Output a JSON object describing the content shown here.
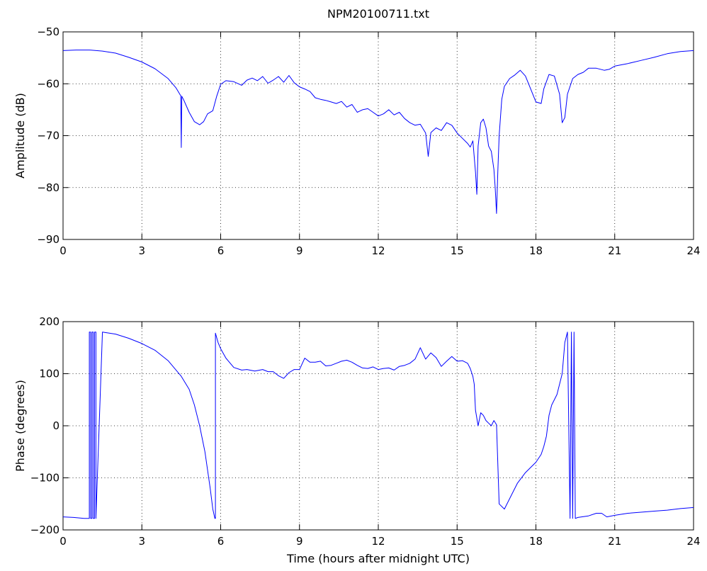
{
  "figure": {
    "title": "NPM20100711.txt"
  },
  "chart_data": [
    {
      "type": "line",
      "title": "NPM20100711.txt",
      "xlabel": "",
      "ylabel": "Amplitude (dB)",
      "xlim": [
        0,
        24
      ],
      "ylim": [
        -90,
        -50
      ],
      "xticks": [
        "0",
        "3",
        "6",
        "9",
        "12",
        "15",
        "18",
        "21",
        "24"
      ],
      "yticks": [
        "-90",
        "-80",
        "-70",
        "-60",
        "-50"
      ],
      "grid": true,
      "color": "#0000ff",
      "series": [
        {
          "x": [
            0,
            0.5,
            1,
            1.5,
            2,
            2.5,
            3,
            3.5,
            4,
            4.3,
            4.48,
            4.5,
            4.52,
            4.6,
            4.8,
            5,
            5.2,
            5.35,
            5.5,
            5.7,
            5.85,
            6,
            6.2,
            6.5,
            6.8,
            7,
            7.2,
            7.4,
            7.6,
            7.8,
            8,
            8.2,
            8.4,
            8.6,
            8.8,
            9,
            9.2,
            9.4,
            9.6,
            9.8,
            10,
            10.2,
            10.4,
            10.6,
            10.8,
            11,
            11.2,
            11.4,
            11.6,
            11.8,
            12,
            12.2,
            12.4,
            12.6,
            12.8,
            13,
            13.2,
            13.4,
            13.6,
            13.8,
            13.9,
            14,
            14.2,
            14.4,
            14.6,
            14.8,
            15,
            15.2,
            15.4,
            15.5,
            15.6,
            15.7,
            15.75,
            15.8,
            15.9,
            16,
            16.1,
            16.2,
            16.3,
            16.4,
            16.45,
            16.5,
            16.55,
            16.6,
            16.7,
            16.8,
            17,
            17.2,
            17.4,
            17.6,
            17.8,
            18,
            18.2,
            18.3,
            18.5,
            18.7,
            18.9,
            19,
            19.1,
            19.2,
            19.4,
            19.6,
            19.8,
            20,
            20.3,
            20.6,
            20.8,
            21,
            21.5,
            22,
            22.5,
            23,
            23.5,
            24
          ],
          "y": [
            -53.6,
            -53.5,
            -53.5,
            -53.7,
            -54.1,
            -54.9,
            -55.8,
            -57.1,
            -59.0,
            -60.8,
            -62.3,
            -72.3,
            -62.4,
            -63.2,
            -65.5,
            -67.3,
            -67.9,
            -67.3,
            -65.8,
            -65.2,
            -62.4,
            -60.1,
            -59.4,
            -59.6,
            -60.3,
            -59.3,
            -58.9,
            -59.4,
            -58.6,
            -59.9,
            -59.3,
            -58.6,
            -59.7,
            -58.4,
            -59.8,
            -60.6,
            -61.0,
            -61.5,
            -62.7,
            -63.0,
            -63.2,
            -63.5,
            -63.8,
            -63.4,
            -64.5,
            -64.0,
            -65.5,
            -65.0,
            -64.8,
            -65.5,
            -66.2,
            -65.8,
            -65.0,
            -66.0,
            -65.5,
            -66.7,
            -67.5,
            -68.0,
            -67.8,
            -69.5,
            -74.0,
            -69.4,
            -68.5,
            -69.0,
            -67.5,
            -68.0,
            -69.5,
            -70.5,
            -71.5,
            -72.2,
            -71.0,
            -77.0,
            -81.3,
            -72.0,
            -67.5,
            -66.8,
            -68.5,
            -72.0,
            -73.0,
            -76.5,
            -80.0,
            -85.0,
            -77.0,
            -70.0,
            -63.0,
            -60.5,
            -59.0,
            -58.3,
            -57.4,
            -58.5,
            -61.0,
            -63.5,
            -63.8,
            -61.0,
            -58.2,
            -58.5,
            -62.0,
            -67.5,
            -66.5,
            -62.0,
            -59.0,
            -58.2,
            -57.8,
            -57.0,
            -57.0,
            -57.4,
            -57.2,
            -56.6,
            -56.1,
            -55.5,
            -54.9,
            -54.2,
            -53.8,
            -53.6
          ]
        }
      ]
    },
    {
      "type": "line",
      "title": "",
      "xlabel": "Time (hours after midnight UTC)",
      "ylabel": "Phase (degrees)",
      "xlim": [
        0,
        24
      ],
      "ylim": [
        -200,
        200
      ],
      "xticks": [
        "0",
        "3",
        "6",
        "9",
        "12",
        "15",
        "18",
        "21",
        "24"
      ],
      "yticks": [
        "-200",
        "-100",
        "0",
        "100",
        "200"
      ],
      "grid": true,
      "color": "#0000ff",
      "series": [
        {
          "x": [
            0,
            0.4,
            0.8,
            1.0,
            1.0,
            1.05,
            1.05,
            1.1,
            1.1,
            1.15,
            1.15,
            1.2,
            1.2,
            1.25,
            1.25,
            1.5,
            2,
            2.5,
            3,
            3.5,
            4,
            4.5,
            4.8,
            5,
            5.2,
            5.4,
            5.6,
            5.7,
            5.78,
            5.8,
            5.8,
            5.9,
            6,
            6.2,
            6.5,
            6.8,
            7,
            7.3,
            7.6,
            7.8,
            8,
            8.2,
            8.4,
            8.6,
            8.8,
            9,
            9.2,
            9.4,
            9.6,
            9.8,
            10,
            10.2,
            10.4,
            10.6,
            10.8,
            11,
            11.2,
            11.4,
            11.6,
            11.8,
            12,
            12.2,
            12.4,
            12.6,
            12.8,
            13,
            13.2,
            13.4,
            13.6,
            13.8,
            14,
            14.2,
            14.4,
            14.6,
            14.8,
            15,
            15.2,
            15.4,
            15.5,
            15.6,
            15.65,
            15.7,
            15.8,
            15.9,
            16,
            16.1,
            16.2,
            16.3,
            16.4,
            16.5,
            16.6,
            16.8,
            17,
            17.3,
            17.6,
            17.9,
            18,
            18.2,
            18.3,
            18.4,
            18.5,
            18.6,
            18.8,
            19,
            19.1,
            19.2,
            19.3,
            19.3,
            19.35,
            19.35,
            19.4,
            19.4,
            19.45,
            19.45,
            19.5,
            19.5,
            19.6,
            20,
            20.3,
            20.5,
            20.7,
            21,
            21.5,
            22,
            22.5,
            23,
            23.5,
            24
          ],
          "y": [
            -175,
            -176,
            -178,
            -178,
            180,
            180,
            -178,
            -178,
            180,
            180,
            -178,
            -178,
            180,
            180,
            -178,
            180,
            176,
            168,
            158,
            145,
            125,
            95,
            70,
            40,
            0,
            -50,
            -120,
            -160,
            -178,
            -178,
            178,
            160,
            148,
            130,
            112,
            107,
            108,
            105,
            108,
            104,
            104,
            96,
            91,
            102,
            108,
            108,
            130,
            122,
            122,
            124,
            115,
            116,
            120,
            124,
            126,
            122,
            116,
            111,
            110,
            113,
            108,
            110,
            111,
            107,
            114,
            116,
            120,
            128,
            150,
            128,
            140,
            131,
            114,
            124,
            133,
            124,
            125,
            120,
            110,
            95,
            80,
            30,
            0,
            25,
            20,
            10,
            5,
            0,
            10,
            2,
            -150,
            -160,
            -140,
            -110,
            -90,
            -75,
            -70,
            -55,
            -40,
            -20,
            20,
            40,
            60,
            100,
            160,
            180,
            -178,
            -178,
            180,
            180,
            -178,
            -178,
            180,
            180,
            -178,
            -178,
            -176,
            -173,
            -168,
            -168,
            -175,
            -172,
            -168,
            -166,
            -164,
            -162,
            -159,
            -157
          ]
        }
      ]
    }
  ]
}
